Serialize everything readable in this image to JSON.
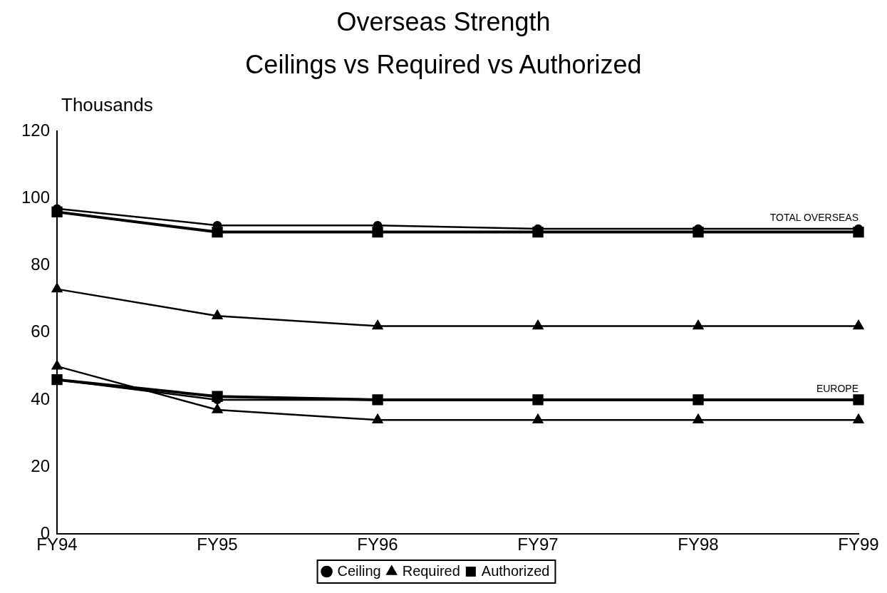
{
  "chart_data": {
    "type": "line",
    "title": "Overseas Strength",
    "subtitle": "Ceilings vs Required vs Authorized",
    "ylabel": "Thousands",
    "categories": [
      "FY94",
      "FY95",
      "FY96",
      "FY97",
      "FY98",
      "FY99"
    ],
    "series": [
      {
        "name": "Ceiling",
        "color": "#000000",
        "marker": "circle",
        "values": [
          97,
          92,
          92,
          91,
          91,
          91
        ]
      },
      {
        "name": "Required",
        "color": "#000000",
        "marker": "triangle",
        "values": [
          73,
          65,
          62,
          62,
          62,
          62
        ]
      },
      {
        "name": "Authorized",
        "color": "#000000",
        "marker": "square",
        "values": [
          96,
          90,
          90,
          90,
          90,
          90
        ]
      },
      {
        "color": "#000000",
        "marker": "square",
        "values": [
          46,
          41,
          40,
          40,
          40,
          40
        ]
      },
      {
        "color": "#000000",
        "marker": "triangle",
        "values": [
          50,
          37,
          34,
          34,
          34,
          34
        ]
      },
      {
        "color": "#000000",
        "marker": "circle",
        "values": [
          46,
          40,
          40,
          40,
          40,
          40
        ]
      }
    ],
    "ylim": [
      0,
      120
    ],
    "yticks": [
      0,
      20,
      40,
      60,
      80,
      100,
      120
    ],
    "grid": false,
    "legend": "bottom",
    "annotations": [
      {
        "text": "TOTAL OVERSEAS",
        "x": "FY99",
        "y": 91
      },
      {
        "text": "EUROPE",
        "x": "FY99",
        "y": 40
      }
    ]
  }
}
